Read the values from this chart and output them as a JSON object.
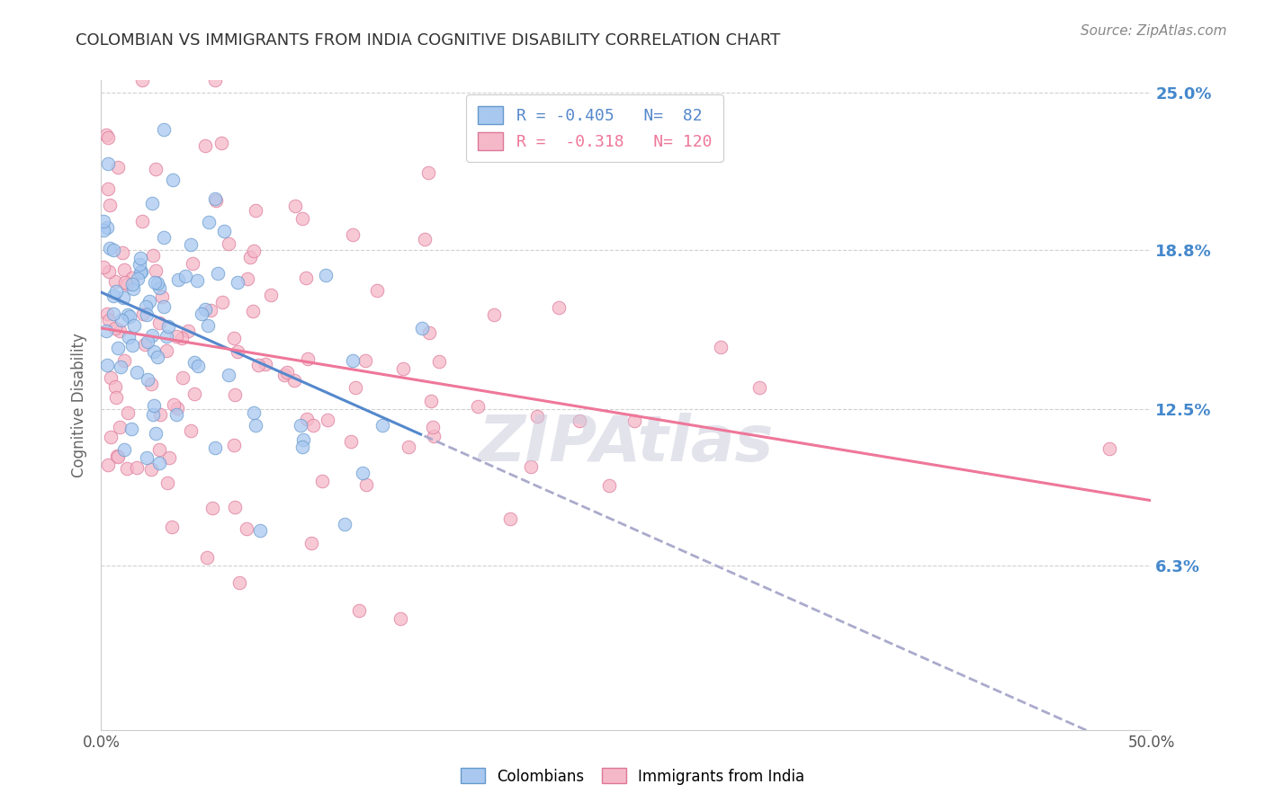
{
  "title": "COLOMBIAN VS IMMIGRANTS FROM INDIA COGNITIVE DISABILITY CORRELATION CHART",
  "source": "Source: ZipAtlas.com",
  "ylabel": "Cognitive Disability",
  "xmin": 0.0,
  "xmax": 0.5,
  "ymin": 0.0,
  "ymax": 0.25,
  "yticks": [
    0.063,
    0.125,
    0.188,
    0.25
  ],
  "ytick_labels": [
    "6.3%",
    "12.5%",
    "18.8%",
    "25.0%"
  ],
  "color_blue": "#A8C8F0",
  "color_pink": "#F5B8C8",
  "color_blue_edge": "#6699CC",
  "color_pink_edge": "#DD7799",
  "color_blue_line": "#5588CC",
  "color_pink_line": "#EE7799",
  "color_dashed": "#AAAACC",
  "background_color": "#FFFFFF",
  "grid_color": "#CCCCCC",
  "title_color": "#333333",
  "source_color": "#888888",
  "right_label_color": "#4488CC",
  "seed": 7
}
